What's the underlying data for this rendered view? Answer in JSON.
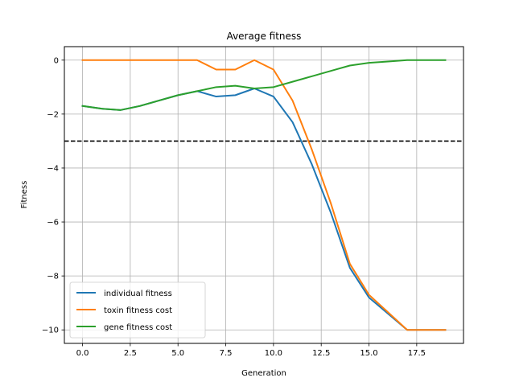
{
  "chart_data": {
    "type": "line",
    "title": "Average fitness",
    "xlabel": "Generation",
    "ylabel": "Fitness",
    "xlim": [
      -0.95,
      19.95
    ],
    "ylim": [
      -10.5,
      0.5
    ],
    "xticks": [
      0.0,
      2.5,
      5.0,
      7.5,
      10.0,
      12.5,
      15.0,
      17.5
    ],
    "xtick_labels": [
      "0.0",
      "2.5",
      "5.0",
      "7.5",
      "10.0",
      "12.5",
      "15.0",
      "17.5"
    ],
    "yticks": [
      0,
      -2,
      -4,
      -6,
      -8,
      -10
    ],
    "ytick_labels": [
      "0",
      "−2",
      "−4",
      "−6",
      "−8",
      "−10"
    ],
    "grid": true,
    "legend_position": "lower-left",
    "hline": {
      "y": -3,
      "style": "dashed",
      "color": "#000000"
    },
    "x": [
      0,
      1,
      2,
      3,
      4,
      5,
      6,
      7,
      8,
      9,
      10,
      11,
      12,
      13,
      14,
      15,
      16,
      17,
      18,
      19
    ],
    "series": [
      {
        "name": "individual fitness",
        "color": "#1f77b4",
        "values": [
          -1.7,
          -1.8,
          -1.85,
          -1.7,
          -1.5,
          -1.3,
          -1.15,
          -1.35,
          -1.3,
          -1.05,
          -1.35,
          -2.3,
          -3.85,
          -5.65,
          -7.7,
          -8.8,
          -9.4,
          -10.0,
          -10.0,
          -10.0
        ]
      },
      {
        "name": "toxin fitness cost",
        "color": "#ff7f0e",
        "values": [
          0,
          0,
          0,
          0,
          0,
          0,
          0,
          -0.35,
          -0.35,
          0,
          -0.35,
          -1.5,
          -3.3,
          -5.3,
          -7.55,
          -8.7,
          -9.35,
          -10.0,
          -10.0,
          -10.0
        ]
      },
      {
        "name": "gene fitness cost",
        "color": "#2ca02c",
        "values": [
          -1.7,
          -1.8,
          -1.85,
          -1.7,
          -1.5,
          -1.3,
          -1.15,
          -1.0,
          -0.95,
          -1.05,
          -1.0,
          -0.8,
          -0.6,
          -0.4,
          -0.2,
          -0.1,
          -0.05,
          0,
          0,
          0
        ]
      }
    ]
  }
}
